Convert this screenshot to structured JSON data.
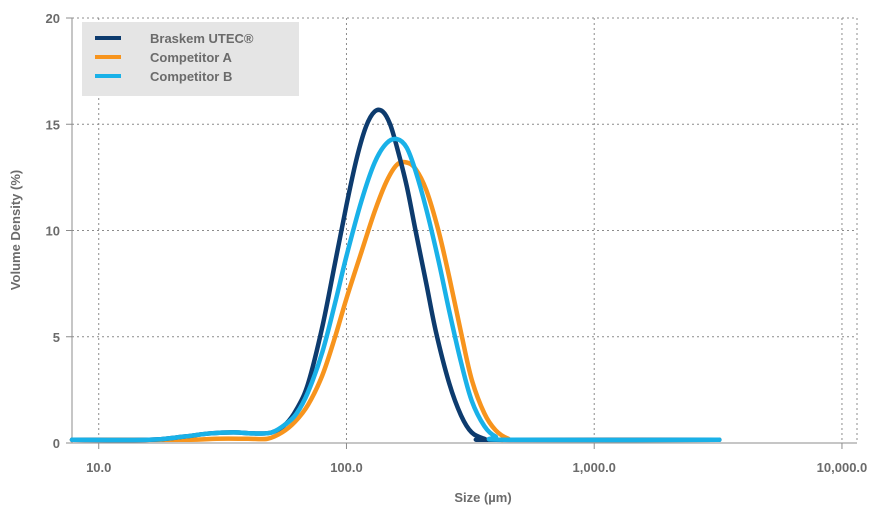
{
  "chart_data": {
    "type": "line",
    "xlabel": "Size (µm)",
    "ylabel": "Volume Density (%)",
    "x_scale": "log",
    "xlim": [
      7.8,
      11500
    ],
    "ylim": [
      0,
      20
    ],
    "x_ticks": [
      10,
      100,
      1000,
      10000
    ],
    "x_tick_labels": [
      "10.0",
      "100.0",
      "1,000.0",
      "10,000.0"
    ],
    "y_ticks": [
      0,
      5,
      10,
      15,
      20
    ],
    "y_tick_labels": [
      "0",
      "5",
      "10",
      "15",
      "20"
    ],
    "grid": true,
    "legend_position": "top-left",
    "series": [
      {
        "name": "Braskem UTEC®",
        "color": "#0d3b6e",
        "points": [
          [
            7.8,
            0.15
          ],
          [
            16,
            0.15
          ],
          [
            22,
            0.3
          ],
          [
            28,
            0.45
          ],
          [
            35,
            0.5
          ],
          [
            43,
            0.45
          ],
          [
            50,
            0.5
          ],
          [
            57,
            0.9
          ],
          [
            63,
            1.6
          ],
          [
            70,
            2.8
          ],
          [
            80,
            5.5
          ],
          [
            90,
            8.5
          ],
          [
            100,
            11.2
          ],
          [
            110,
            13.4
          ],
          [
            120,
            14.9
          ],
          [
            130,
            15.6
          ],
          [
            140,
            15.6
          ],
          [
            150,
            15.0
          ],
          [
            160,
            13.9
          ],
          [
            175,
            12.1
          ],
          [
            190,
            10.0
          ],
          [
            210,
            7.5
          ],
          [
            230,
            5.2
          ],
          [
            260,
            2.8
          ],
          [
            290,
            1.3
          ],
          [
            320,
            0.5
          ],
          [
            360,
            0.2
          ],
          [
            400,
            0.15
          ],
          [
            3200,
            0.15
          ]
        ]
      },
      {
        "name": "Competitor A",
        "color": "#f7941d",
        "points": [
          [
            7.8,
            0.15
          ],
          [
            22,
            0.15
          ],
          [
            30,
            0.2
          ],
          [
            40,
            0.2
          ],
          [
            48,
            0.2
          ],
          [
            55,
            0.5
          ],
          [
            62,
            1.0
          ],
          [
            70,
            1.8
          ],
          [
            80,
            3.2
          ],
          [
            90,
            5.0
          ],
          [
            100,
            6.8
          ],
          [
            115,
            9.0
          ],
          [
            130,
            10.9
          ],
          [
            145,
            12.3
          ],
          [
            160,
            13.1
          ],
          [
            175,
            13.2
          ],
          [
            190,
            12.9
          ],
          [
            210,
            11.9
          ],
          [
            235,
            10.0
          ],
          [
            260,
            7.8
          ],
          [
            290,
            5.2
          ],
          [
            320,
            3.0
          ],
          [
            360,
            1.4
          ],
          [
            400,
            0.6
          ],
          [
            450,
            0.2
          ],
          [
            500,
            0.15
          ],
          [
            3200,
            0.15
          ]
        ]
      },
      {
        "name": "Competitor B",
        "color": "#19b1e8",
        "points": [
          [
            7.8,
            0.15
          ],
          [
            16,
            0.15
          ],
          [
            22,
            0.3
          ],
          [
            28,
            0.45
          ],
          [
            35,
            0.5
          ],
          [
            43,
            0.45
          ],
          [
            50,
            0.5
          ],
          [
            57,
            0.9
          ],
          [
            63,
            1.4
          ],
          [
            70,
            2.4
          ],
          [
            80,
            4.3
          ],
          [
            90,
            6.6
          ],
          [
            100,
            8.8
          ],
          [
            115,
            11.4
          ],
          [
            130,
            13.2
          ],
          [
            145,
            14.1
          ],
          [
            160,
            14.3
          ],
          [
            175,
            13.9
          ],
          [
            190,
            12.8
          ],
          [
            210,
            11.0
          ],
          [
            235,
            8.6
          ],
          [
            260,
            6.2
          ],
          [
            290,
            3.8
          ],
          [
            320,
            2.0
          ],
          [
            360,
            0.8
          ],
          [
            400,
            0.3
          ],
          [
            450,
            0.15
          ],
          [
            3200,
            0.15
          ]
        ]
      }
    ]
  }
}
